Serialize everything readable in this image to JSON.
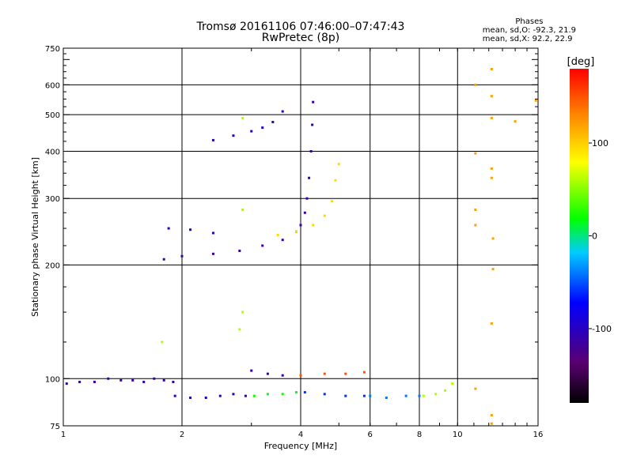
{
  "chart_data": {
    "type": "scatter",
    "title": "Tromsø 20161106 07:46:00–07:47:43",
    "subtitle": "RwPretec (8p)",
    "xlabel": "Frequency [MHz]",
    "ylabel": "Stationary phase Virtual Height [km]",
    "x_scale": "log",
    "y_scale": "log",
    "xlim": [
      1,
      16
    ],
    "ylim": [
      75,
      750
    ],
    "x_ticks": [
      1,
      2,
      4,
      6,
      8,
      10,
      16
    ],
    "x_tick_labels": [
      "1",
      "2",
      "4",
      "6",
      "8",
      "10",
      "16"
    ],
    "y_ticks": [
      75,
      100,
      200,
      300,
      400,
      500,
      600,
      750
    ],
    "y_tick_labels": [
      "75",
      "100",
      "200",
      "300",
      "400",
      "500",
      "600",
      "750"
    ],
    "grid": true,
    "colorbar": {
      "label": "[deg]",
      "range": [
        -180,
        180
      ],
      "ticks": [
        -100,
        0,
        100
      ],
      "tick_labels": [
        "-100",
        "0",
        "100"
      ]
    },
    "phase_stats": {
      "title": "Phases",
      "o_line": "mean, sd,O: -92.3, 21.9",
      "x_line": "mean, sd,X:  92.2, 22.9"
    },
    "traces": [
      {
        "points": [
          [
            1.02,
            97
          ],
          [
            1.1,
            98
          ],
          [
            1.2,
            98
          ],
          [
            1.3,
            100
          ],
          [
            1.4,
            99
          ],
          [
            1.5,
            99
          ],
          [
            1.6,
            98
          ],
          [
            1.7,
            100
          ],
          [
            1.8,
            99
          ],
          [
            1.9,
            98
          ]
        ],
        "phase": -110
      },
      {
        "points": [
          [
            1.92,
            90
          ],
          [
            2.1,
            89
          ],
          [
            2.3,
            89
          ],
          [
            2.5,
            90
          ],
          [
            2.7,
            91
          ],
          [
            2.9,
            90
          ]
        ],
        "phase": -100
      },
      {
        "points": [
          [
            3.05,
            90
          ],
          [
            3.3,
            91
          ],
          [
            3.6,
            91
          ],
          [
            3.9,
            92
          ]
        ],
        "phase": 20
      },
      {
        "points": [
          [
            4.1,
            92
          ],
          [
            4.6,
            91
          ],
          [
            5.2,
            90
          ],
          [
            5.8,
            90
          ]
        ],
        "phase": -60
      },
      {
        "points": [
          [
            6.0,
            90
          ],
          [
            6.6,
            89
          ],
          [
            7.4,
            90
          ],
          [
            8.0,
            90
          ]
        ],
        "phase": -40
      },
      {
        "points": [
          [
            8.2,
            90
          ],
          [
            8.8,
            91
          ],
          [
            9.3,
            93
          ],
          [
            9.7,
            97
          ]
        ],
        "phase": 60
      },
      {
        "points": [
          [
            1.8,
            207
          ],
          [
            2.0,
            211
          ],
          [
            2.4,
            214
          ],
          [
            2.8,
            218
          ],
          [
            3.2,
            225
          ],
          [
            3.6,
            233
          ],
          [
            3.9,
            245
          ],
          [
            4.0,
            255
          ],
          [
            4.1,
            275
          ],
          [
            4.15,
            300
          ],
          [
            4.2,
            340
          ],
          [
            4.25,
            400
          ],
          [
            4.28,
            470
          ],
          [
            4.3,
            540
          ]
        ],
        "phase": -110
      },
      {
        "points": [
          [
            2.4,
            428
          ],
          [
            2.7,
            440
          ],
          [
            3.0,
            452
          ],
          [
            3.2,
            462
          ],
          [
            3.4,
            478
          ],
          [
            3.6,
            510
          ]
        ],
        "phase": -100
      },
      {
        "points": [
          [
            3.5,
            240
          ],
          [
            3.9,
            245
          ],
          [
            4.3,
            255
          ],
          [
            4.6,
            270
          ],
          [
            4.8,
            295
          ],
          [
            4.9,
            335
          ],
          [
            5.0,
            370
          ]
        ],
        "phase": 95
      },
      {
        "points": [
          [
            1.85,
            250
          ],
          [
            2.1,
            248
          ],
          [
            2.4,
            243
          ]
        ],
        "phase": -90
      },
      {
        "points": [
          [
            3.0,
            105
          ],
          [
            3.3,
            103
          ],
          [
            3.6,
            102
          ]
        ],
        "phase": -110
      },
      {
        "points": [
          [
            4.0,
            102
          ],
          [
            4.6,
            103
          ],
          [
            5.2,
            103
          ],
          [
            5.8,
            104
          ]
        ],
        "phase": 150
      },
      {
        "points": [
          [
            11.1,
            600
          ],
          [
            12.2,
            660
          ],
          [
            12.2,
            560
          ],
          [
            12.2,
            490
          ],
          [
            12.2,
            360
          ],
          [
            12.2,
            340
          ],
          [
            12.3,
            235
          ],
          [
            12.3,
            195
          ],
          [
            12.2,
            140
          ],
          [
            11.1,
            395
          ],
          [
            11.1,
            280
          ],
          [
            11.1,
            255
          ],
          [
            11.1,
            94
          ],
          [
            12.2,
            80
          ],
          [
            12.2,
            76
          ],
          [
            14.0,
            480
          ],
          [
            15.8,
            545
          ]
        ],
        "phase": 120
      },
      {
        "points": [
          [
            1.78,
            125
          ],
          [
            2.85,
            150
          ],
          [
            2.8,
            135
          ],
          [
            2.85,
            280
          ],
          [
            2.85,
            490
          ]
        ],
        "phase": 60
      }
    ]
  }
}
